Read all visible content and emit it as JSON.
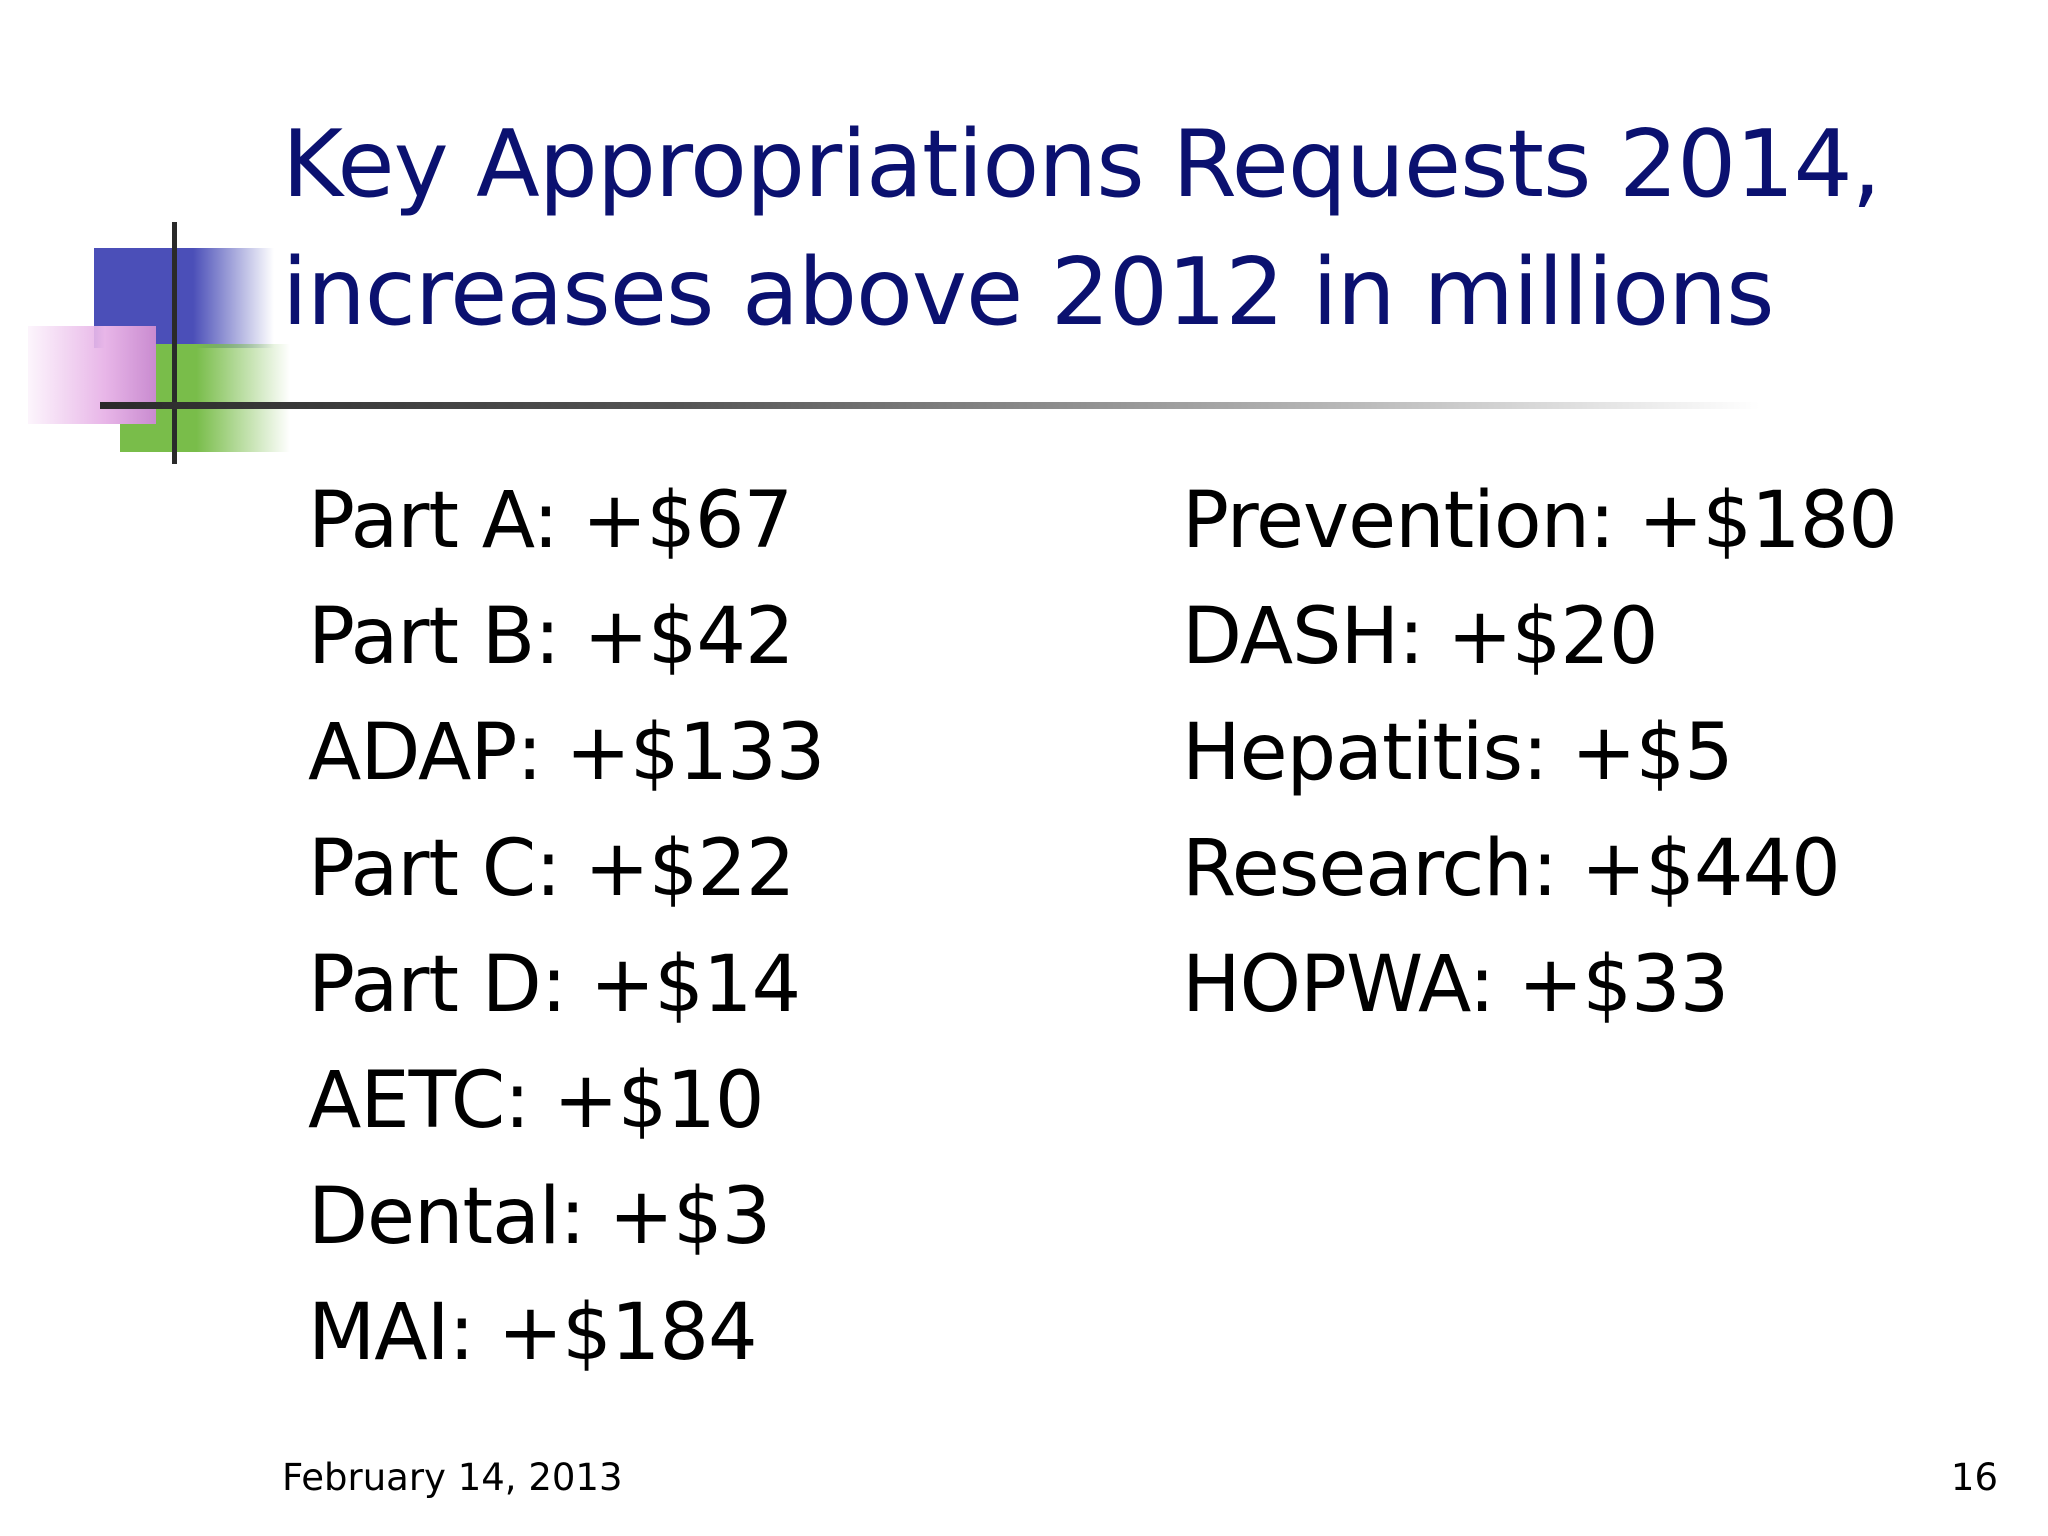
{
  "slide": {
    "title_lines": [
      "Key Appropriations Requests 2014,",
      "increases above 2012 in millions"
    ],
    "left_items": [
      "Part A: +$67",
      "Part B: +$42",
      "ADAP: +$133",
      "Part C: +$22",
      "Part D: +$14",
      "AETC: +$10",
      "Dental: +$3",
      "MAI: +$184"
    ],
    "right_items": [
      "Prevention: +$180",
      "DASH: +$20",
      "Hepatitis: +$5",
      "Research: +$440",
      "HOPWA: +$33"
    ],
    "footer_date": "February 14, 2013",
    "page_number": "16"
  },
  "colors": {
    "title": "#0b1170",
    "accent_blue": "#4b4fb8",
    "accent_green": "#79bd4a",
    "accent_pink": "#c98bd0"
  }
}
